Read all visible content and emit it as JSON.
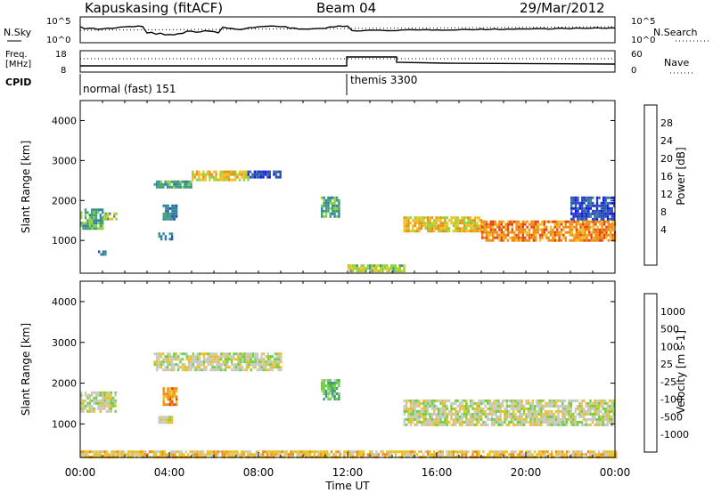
{
  "header": {
    "station": "Kapuskasing (fitACF)",
    "beam": "Beam 04",
    "date": "29/Mar/2012"
  },
  "noise_panel": {
    "left_label": "N.Sky",
    "right_label": "N.Search",
    "left_ticks": [
      "10^5",
      "10^0"
    ],
    "right_ticks": [
      "10^5",
      "10^0"
    ]
  },
  "freq_panel": {
    "left_label_line1": "Freq.",
    "left_label_line2": "[MHz]",
    "left_ticks": [
      "18",
      "8"
    ],
    "right_label": "Nave",
    "right_ticks": [
      "60",
      "0"
    ]
  },
  "cpid": {
    "label": "CPID",
    "segments": [
      {
        "name": "normal (fast) 151",
        "start_hour": 0,
        "end_hour": 12
      },
      {
        "name": "themis 3300",
        "start_hour": 12,
        "end_hour": 24
      }
    ]
  },
  "colors": {
    "power": [
      "#1a1ae6",
      "#2a4fb0",
      "#2f7fa0",
      "#3f9d78",
      "#8fd23a",
      "#f0c020",
      "#f08a10",
      "#e84010",
      "#e01010"
    ],
    "velocity": [
      "#1a1ae6",
      "#2a4fb0",
      "#3f9d78",
      "#6ad040",
      "#c8c8c0",
      "#e8c020",
      "#f08a10",
      "#e84010",
      "#e01010"
    ]
  },
  "chart_data": [
    {
      "type": "heatmap",
      "title": "Power",
      "ylabel": "Slant Range [km]",
      "ylim": [
        180,
        4500
      ],
      "xlim": [
        0,
        24
      ],
      "y_ticks": [
        1000,
        2000,
        3000,
        4000
      ],
      "colorbar_label": "Power [dB]",
      "colorbar_ticks": [
        "28",
        "24",
        "20",
        "16",
        "12",
        "8",
        "4"
      ],
      "regions": [
        {
          "x": [
            0.0,
            1.0
          ],
          "y": [
            1300,
            1800
          ],
          "level": 3
        },
        {
          "x": [
            1.0,
            1.6
          ],
          "y": [
            1500,
            1700
          ],
          "level": 4
        },
        {
          "x": [
            0.8,
            1.1
          ],
          "y": [
            650,
            750
          ],
          "level": 2
        },
        {
          "x": [
            3.5,
            4.1
          ],
          "y": [
            1050,
            1200
          ],
          "level": 2
        },
        {
          "x": [
            3.7,
            4.3
          ],
          "y": [
            1500,
            1900
          ],
          "level": 2
        },
        {
          "x": [
            3.3,
            5.0
          ],
          "y": [
            2300,
            2500
          ],
          "level": 3
        },
        {
          "x": [
            5.0,
            7.5
          ],
          "y": [
            2500,
            2750
          ],
          "level": 5
        },
        {
          "x": [
            7.5,
            9.0
          ],
          "y": [
            2600,
            2750
          ],
          "level": 1
        },
        {
          "x": [
            10.8,
            11.6
          ],
          "y": [
            1600,
            2100
          ],
          "level": 3
        },
        {
          "x": [
            12.0,
            14.5
          ],
          "y": [
            250,
            400
          ],
          "level": 4
        },
        {
          "x": [
            14.5,
            18.0
          ],
          "y": [
            1200,
            1600
          ],
          "level": 5
        },
        {
          "x": [
            18.0,
            24.0
          ],
          "y": [
            1000,
            1500
          ],
          "level": 6
        },
        {
          "x": [
            22.0,
            24.0
          ],
          "y": [
            1500,
            2100
          ],
          "level": 1
        }
      ]
    },
    {
      "type": "heatmap",
      "title": "Velocity",
      "ylabel": "Slant Range [km]",
      "xlabel": "Time UT",
      "ylim": [
        180,
        4500
      ],
      "xlim": [
        0,
        24
      ],
      "y_ticks": [
        1000,
        2000,
        3000,
        4000
      ],
      "x_tick_labels": [
        "00:00",
        "04:00",
        "08:00",
        "12:00",
        "16:00",
        "20:00",
        "00:00"
      ],
      "colorbar_label": "Velocity [m s-1]",
      "colorbar_ticks": [
        "1000",
        "500",
        "100",
        "25",
        "-25",
        "-100",
        "-500",
        "-1000"
      ],
      "regions": [
        {
          "x": [
            0.0,
            1.6
          ],
          "y": [
            1300,
            1800
          ],
          "level": 4
        },
        {
          "x": [
            3.3,
            9.0
          ],
          "y": [
            2300,
            2750
          ],
          "level": 4
        },
        {
          "x": [
            3.7,
            4.3
          ],
          "y": [
            1500,
            1900
          ],
          "level": 6
        },
        {
          "x": [
            3.5,
            4.1
          ],
          "y": [
            1050,
            1200
          ],
          "level": 4
        },
        {
          "x": [
            10.8,
            11.6
          ],
          "y": [
            1600,
            2100
          ],
          "level": 3
        },
        {
          "x": [
            14.5,
            24.0
          ],
          "y": [
            1000,
            1600
          ],
          "level": 4
        },
        {
          "x": [
            0.0,
            24.0
          ],
          "y": [
            200,
            350
          ],
          "level": 5
        }
      ]
    }
  ]
}
